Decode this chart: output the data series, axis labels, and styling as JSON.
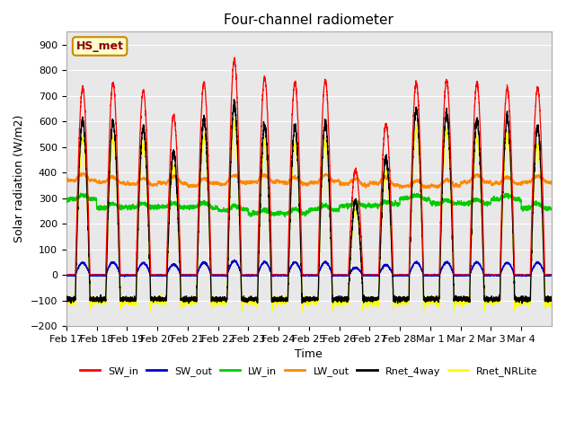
{
  "title": "Four-channel radiometer",
  "xlabel": "Time",
  "ylabel": "Solar radiation (W/m2)",
  "ylim": [
    -200,
    950
  ],
  "yticks": [
    -200,
    -100,
    0,
    100,
    200,
    300,
    400,
    500,
    600,
    700,
    800,
    900
  ],
  "annotation": "HS_met",
  "n_days": 16,
  "plot_bg": "#e8e8e8",
  "colors": {
    "SW_in": "#ff0000",
    "SW_out": "#0000cc",
    "LW_in": "#00cc00",
    "LW_out": "#ff8800",
    "Rnet_4way": "#000000",
    "Rnet_NRLite": "#ffff00"
  },
  "SW_in_peaks": [
    730,
    750,
    720,
    620,
    750,
    840,
    770,
    750,
    760,
    410,
    590,
    750,
    760,
    750,
    730,
    730
  ],
  "LW_out_base": 360,
  "LW_in_base": 275,
  "Rnet_night": -95,
  "grid_color": "#ffffff",
  "title_fontsize": 11,
  "tick_labels": [
    "Feb 17",
    "Feb 18",
    "Feb 19",
    "Feb 20",
    "Feb 21",
    "Feb 22",
    "Feb 23",
    "Feb 24",
    "Feb 25",
    "Feb 26",
    "Feb 27",
    "Feb 28",
    "Mar 1",
    "Mar 2",
    "Mar 3",
    "Mar 4"
  ]
}
